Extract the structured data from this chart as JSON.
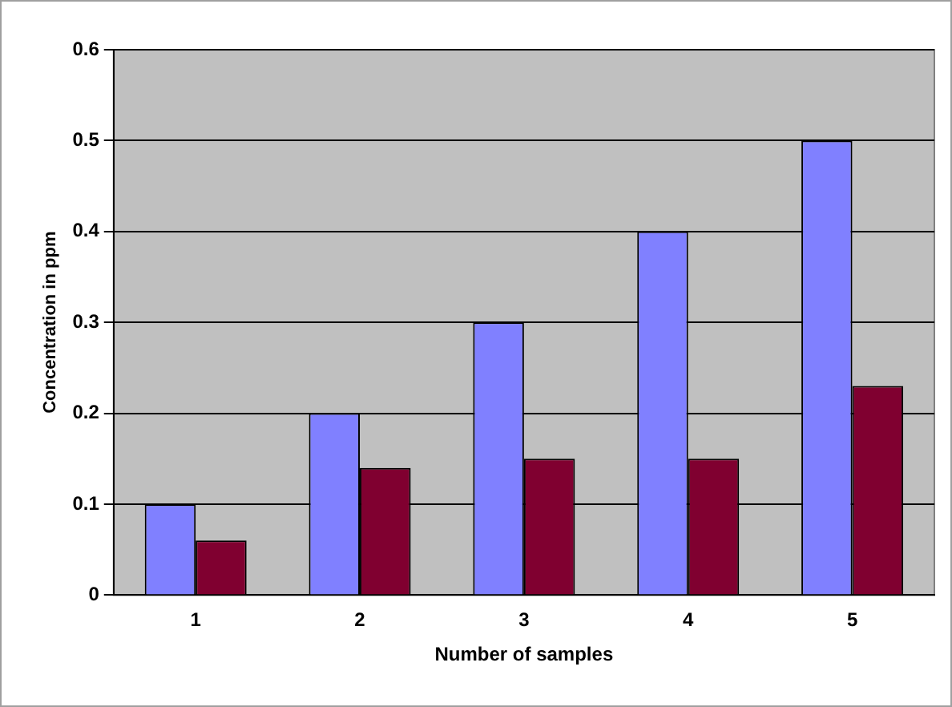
{
  "chart_data": {
    "type": "bar",
    "xlabel": "Number of samples",
    "ylabel": "Concentration in ppm",
    "categories": [
      "1",
      "2",
      "3",
      "4",
      "5"
    ],
    "series": [
      {
        "color": "#8080ff",
        "values": [
          0.1,
          0.2,
          0.3,
          0.4,
          0.5
        ]
      },
      {
        "color": "#800030",
        "values": [
          0.06,
          0.14,
          0.15,
          0.15,
          0.23
        ]
      }
    ],
    "ylim": [
      0,
      0.6
    ],
    "yticks": [
      0,
      0.1,
      0.2,
      0.3,
      0.4,
      0.5,
      0.6
    ],
    "grid": "y",
    "legend": false
  }
}
